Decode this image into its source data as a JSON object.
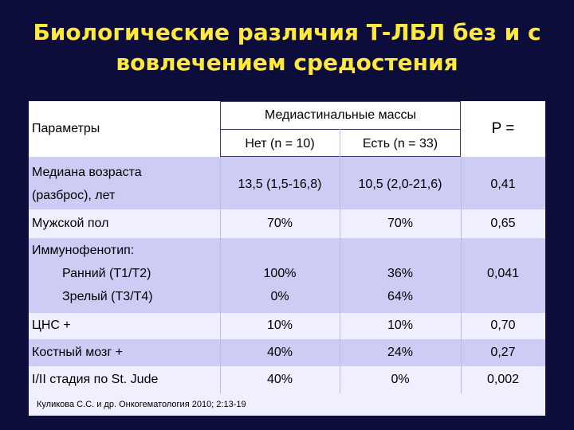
{
  "title": {
    "line1": "Биологические различия Т-ЛБЛ без и с",
    "line2": "вовлечением средостения"
  },
  "table": {
    "header": {
      "params": "Параметры",
      "group": "Медиастинальные массы",
      "col_no": "Нет (n = 10)",
      "col_yes": "Есть (n = 33)",
      "col_p": "P ="
    },
    "rows": {
      "age": {
        "label1": "Медиана возраста",
        "label2": "(разброс), лет",
        "no": "13,5 (1,5-16,8)",
        "yes": "10,5 (2,0-21,6)",
        "p": "0,41"
      },
      "male": {
        "label": "Мужской пол",
        "no": "70%",
        "yes": "70%",
        "p": "0,65"
      },
      "immuno": {
        "label": "Иммунофенотип:",
        "early": {
          "label": "Ранний (T1/T2)",
          "no": "100%",
          "yes": "36%"
        },
        "mature": {
          "label": "Зрелый (T3/T4)",
          "no": "0%",
          "yes": "64%"
        },
        "p": "0,041"
      },
      "cns": {
        "label": "ЦНС +",
        "no": "10%",
        "yes": "10%",
        "p": "0,70"
      },
      "bm": {
        "label": "Костный мозг +",
        "no": "40%",
        "yes": "24%",
        "p": "0,27"
      },
      "stage": {
        "label": "I/II стадия по St. Jude",
        "no": "40%",
        "yes": "0%",
        "p": "0,002"
      }
    }
  },
  "footnote": "Куликова С.С. и др. Онкогематология 2010; 2:13-19"
}
